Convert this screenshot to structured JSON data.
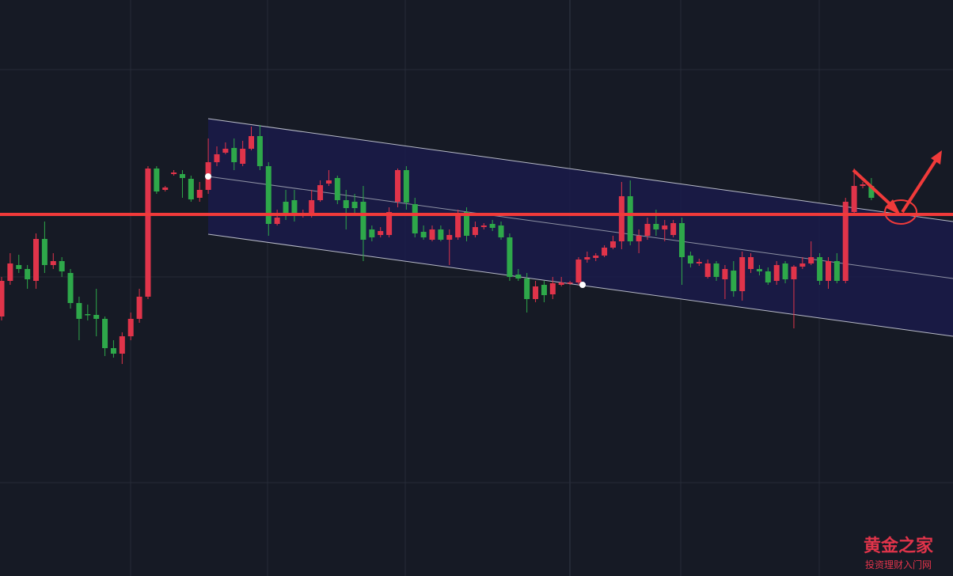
{
  "chart_data": {
    "type": "candlestick",
    "ylim": [
      0,
      728
    ],
    "up_color": "#e0344a",
    "down_color": "#2ea84a",
    "open": [
      328,
      373,
      393,
      388,
      373,
      426,
      393,
      398,
      383,
      345,
      331,
      330,
      325,
      288,
      281,
      303,
      325,
      353,
      515,
      488,
      508,
      508,
      502,
      478,
      488,
      523,
      535,
      541,
      521,
      540,
      556,
      518,
      445,
      473,
      475,
      456,
      458,
      475,
      496,
      503,
      475,
      473,
      473,
      438,
      431,
      431,
      473,
      513,
      470,
      435,
      425,
      438,
      425,
      428,
      460,
      431,
      441,
      445,
      443,
      428,
      381,
      376,
      350,
      368,
      356,
      368,
      370,
      371,
      400,
      402,
      405,
      415,
      423,
      480,
      423,
      430,
      445,
      438,
      431,
      446,
      405,
      395,
      378,
      395,
      375,
      386,
      360,
      388,
      388,
      385,
      373,
      395,
      375,
      391,
      395,
      403,
      373,
      398,
      373,
      460,
      493,
      493
    ],
    "high": [
      378,
      408,
      406,
      393,
      433,
      448,
      408,
      403,
      388,
      353,
      343,
      363,
      328,
      298,
      308,
      333,
      363,
      518,
      518,
      493,
      513,
      513,
      506,
      498,
      553,
      543,
      548,
      553,
      550,
      568,
      570,
      523,
      463,
      488,
      488,
      463,
      488,
      500,
      513,
      506,
      488,
      483,
      493,
      443,
      441,
      466,
      515,
      518,
      478,
      443,
      443,
      443,
      438,
      463,
      466,
      448,
      446,
      450,
      448,
      433,
      388,
      383,
      373,
      373,
      378,
      378,
      373,
      403,
      410,
      408,
      418,
      430,
      498,
      500,
      438,
      453,
      463,
      450,
      450,
      453,
      410,
      401,
      400,
      398,
      393,
      398,
      410,
      408,
      393,
      390,
      398,
      398,
      393,
      403,
      423,
      408,
      403,
      408,
      478,
      515,
      498,
      503
    ],
    "low": [
      323,
      368,
      383,
      363,
      363,
      383,
      388,
      378,
      338,
      298,
      323,
      303,
      278,
      276,
      268,
      298,
      320,
      350,
      483,
      486,
      506,
      478,
      473,
      473,
      483,
      518,
      533,
      513,
      518,
      538,
      513,
      430,
      443,
      450,
      448,
      453,
      453,
      473,
      493,
      470,
      438,
      458,
      398,
      423,
      428,
      428,
      466,
      463,
      428,
      425,
      423,
      423,
      393,
      425,
      423,
      428,
      438,
      436,
      425,
      373,
      373,
      333,
      346,
      346,
      350,
      366,
      368,
      368,
      396,
      398,
      403,
      413,
      413,
      418,
      408,
      425,
      430,
      423,
      428,
      368,
      390,
      392,
      376,
      373,
      350,
      353,
      348,
      383,
      380,
      368,
      368,
      370,
      313,
      388,
      393,
      368,
      363,
      370,
      370,
      458,
      490,
      475
    ],
    "close": [
      373,
      395,
      388,
      375,
      426,
      393,
      398,
      385,
      345,
      325,
      330,
      325,
      288,
      281,
      303,
      325,
      353,
      515,
      486,
      491,
      510,
      503,
      476,
      488,
      523,
      533,
      540,
      523,
      540,
      556,
      518,
      445,
      453,
      456,
      456,
      458,
      475,
      494,
      500,
      475,
      465,
      465,
      425,
      428,
      436,
      460,
      513,
      472,
      433,
      428,
      438,
      425,
      431,
      458,
      430,
      441,
      443,
      440,
      428,
      378,
      376,
      350,
      366,
      355,
      370,
      371,
      371,
      400,
      403,
      405,
      415,
      423,
      480,
      423,
      430,
      445,
      438,
      443,
      446,
      403,
      395,
      397,
      395,
      378,
      388,
      360,
      403,
      403,
      385,
      371,
      393,
      375,
      391,
      395,
      403,
      373,
      398,
      373,
      473,
      493,
      495,
      478
    ],
    "horizontal_line": {
      "value": 457,
      "color": "#f03a3a"
    }
  },
  "watermark": {
    "title": "黄金之家",
    "subtitle": "投资理财入门网"
  }
}
